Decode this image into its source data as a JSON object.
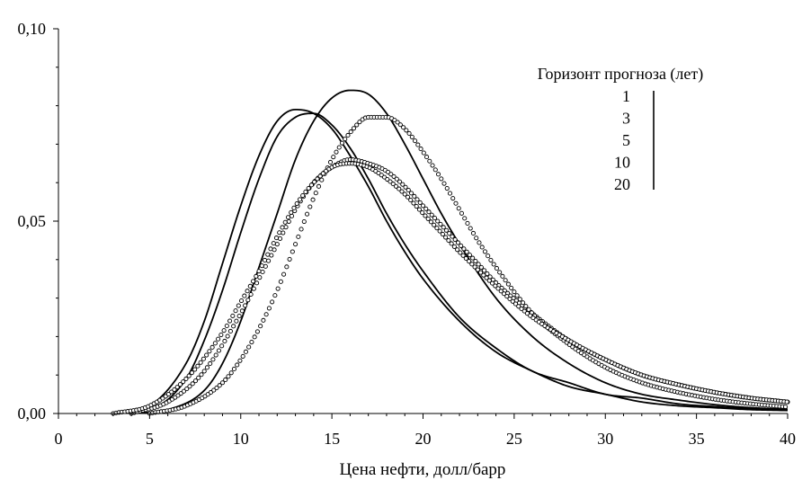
{
  "chart_data": {
    "type": "line",
    "title": "",
    "xlabel": "Цена нефти, долл/барр",
    "ylabel": "",
    "xlim": [
      0,
      40
    ],
    "ylim": [
      0,
      0.1
    ],
    "x_ticks": [
      0,
      5,
      10,
      15,
      20,
      25,
      30,
      35,
      40
    ],
    "x_tick_labels": [
      "0",
      "5",
      "10",
      "15",
      "20",
      "25",
      "30",
      "35",
      "40"
    ],
    "y_ticks": [
      0,
      0.05,
      0.1
    ],
    "y_tick_labels": [
      "0,00",
      "0,05",
      "0,10"
    ],
    "grid": false,
    "legend": {
      "title": "Горизонт прогноза (лет)",
      "placement": "top-right",
      "entries": [
        "1",
        "3",
        "5",
        "10",
        "20"
      ]
    },
    "series": [
      {
        "name": "1",
        "style": "line",
        "x": [
          3,
          5,
          7,
          8,
          9,
          10,
          11,
          12,
          13,
          14,
          15,
          16,
          17,
          18,
          19,
          20,
          22,
          24,
          26,
          28,
          30,
          32,
          34,
          36,
          38,
          40
        ],
        "y": [
          0.0,
          0.002,
          0.013,
          0.024,
          0.039,
          0.054,
          0.067,
          0.076,
          0.079,
          0.078,
          0.074,
          0.067,
          0.059,
          0.05,
          0.042,
          0.035,
          0.024,
          0.016,
          0.011,
          0.007,
          0.005,
          0.003,
          0.002,
          0.0015,
          0.001,
          0.0008
        ]
      },
      {
        "name": "3",
        "style": "line",
        "x": [
          3,
          5,
          7,
          8,
          9,
          10,
          11,
          12,
          13,
          14,
          15,
          16,
          17,
          18,
          19,
          20,
          22,
          24,
          26,
          28,
          30,
          32,
          34,
          36,
          38,
          40
        ],
        "y": [
          0.0,
          0.001,
          0.009,
          0.019,
          0.032,
          0.047,
          0.061,
          0.072,
          0.077,
          0.078,
          0.075,
          0.069,
          0.061,
          0.052,
          0.044,
          0.037,
          0.025,
          0.017,
          0.011,
          0.008,
          0.005,
          0.004,
          0.0025,
          0.0018,
          0.0012,
          0.0008
        ]
      },
      {
        "name": "5",
        "style": "line",
        "x": [
          4,
          6,
          8,
          9,
          10,
          11,
          12,
          13,
          14,
          15,
          16,
          17,
          18,
          19,
          20,
          21,
          22,
          24,
          26,
          28,
          30,
          32,
          34,
          36,
          38,
          40
        ],
        "y": [
          0.0,
          0.001,
          0.006,
          0.013,
          0.024,
          0.038,
          0.052,
          0.066,
          0.076,
          0.082,
          0.084,
          0.083,
          0.078,
          0.07,
          0.061,
          0.052,
          0.044,
          0.03,
          0.02,
          0.013,
          0.008,
          0.005,
          0.0035,
          0.0023,
          0.0015,
          0.0011
        ]
      },
      {
        "name": "10",
        "style": "markers",
        "x": [
          4,
          6,
          8,
          10,
          11,
          12,
          13,
          14,
          15,
          16,
          17,
          18,
          19,
          20,
          21,
          22,
          23,
          24,
          26,
          28,
          30,
          32,
          34,
          36,
          38,
          40
        ],
        "y": [
          0.0,
          0.003,
          0.011,
          0.026,
          0.035,
          0.044,
          0.053,
          0.06,
          0.064,
          0.066,
          0.065,
          0.063,
          0.059,
          0.054,
          0.049,
          0.044,
          0.039,
          0.034,
          0.026,
          0.019,
          0.014,
          0.01,
          0.0075,
          0.0055,
          0.004,
          0.003
        ]
      },
      {
        "name": "20",
        "style": "markers",
        "x": [
          5,
          7,
          9,
          10,
          11,
          12,
          13,
          14,
          15,
          16,
          17,
          18,
          19,
          20,
          21,
          22,
          23,
          24,
          26,
          28,
          30,
          32,
          34,
          36,
          38,
          40
        ],
        "y": [
          0.0,
          0.002,
          0.008,
          0.014,
          0.022,
          0.032,
          0.044,
          0.056,
          0.066,
          0.073,
          0.077,
          0.077,
          0.074,
          0.068,
          0.061,
          0.053,
          0.045,
          0.038,
          0.026,
          0.018,
          0.012,
          0.008,
          0.0055,
          0.0037,
          0.0025,
          0.0017
        ]
      },
      {
        "name": "",
        "style": "markers",
        "x": [
          3,
          5,
          7,
          9,
          10,
          11,
          12,
          13,
          14,
          15,
          16,
          17,
          18,
          19,
          20,
          21,
          22,
          24,
          26,
          28,
          30,
          32,
          34,
          36,
          38,
          40
        ],
        "y": [
          0.0,
          0.002,
          0.009,
          0.021,
          0.029,
          0.037,
          0.046,
          0.054,
          0.06,
          0.064,
          0.065,
          0.064,
          0.061,
          0.057,
          0.052,
          0.047,
          0.042,
          0.033,
          0.025,
          0.019,
          0.014,
          0.01,
          0.0075,
          0.0055,
          0.004,
          0.003
        ]
      }
    ]
  }
}
